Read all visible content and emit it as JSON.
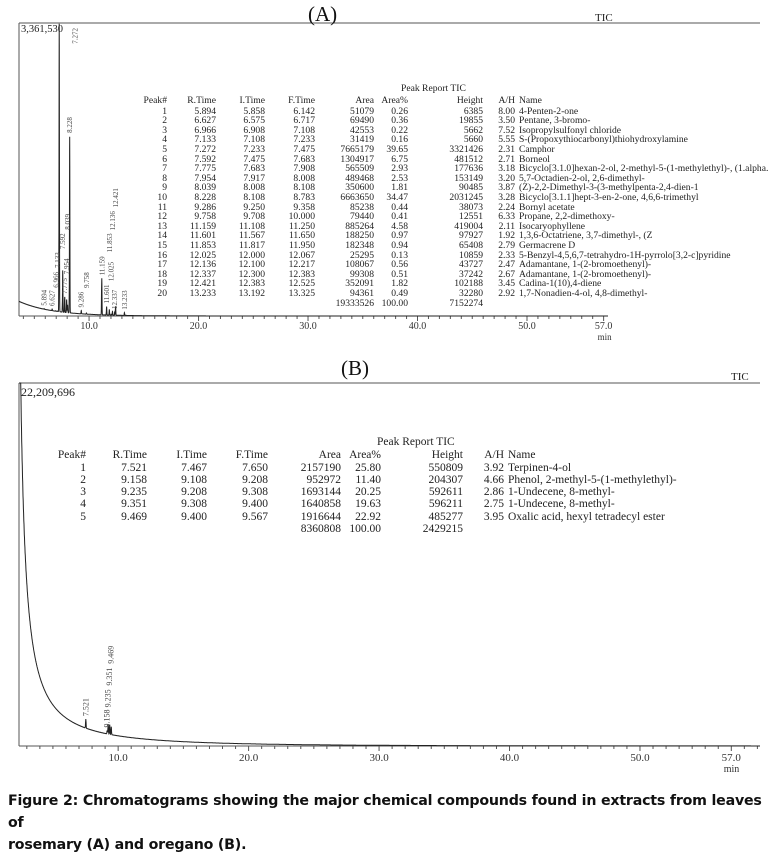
{
  "chart_data": [
    {
      "type": "line",
      "title": "(A)",
      "signal_label": "TIC",
      "y_max_label": "3,361,530",
      "y_max": 3361530,
      "xlim": [
        3.6,
        57.4
      ],
      "x_ticks": [
        "10.0",
        "20.0",
        "30.0",
        "40.0",
        "50.0",
        "57.0"
      ],
      "xlabel": "min",
      "grid": false,
      "line_color": "#222222",
      "table": {
        "title": "Peak Report TIC",
        "columns": [
          "Peak#",
          "R.Time",
          "I.Time",
          "F.Time",
          "Area",
          "Area%",
          "Height",
          "A/H",
          "Name"
        ],
        "rows": [
          [
            "1",
            "5.894",
            "5.858",
            "6.142",
            "51079",
            "0.26",
            "6385",
            "8.00",
            "4-Penten-2-one"
          ],
          [
            "2",
            "6.627",
            "6.575",
            "6.717",
            "69490",
            "0.36",
            "19855",
            "3.50",
            "Pentane, 3-bromo-"
          ],
          [
            "3",
            "6.966",
            "6.908",
            "7.108",
            "42553",
            "0.22",
            "5662",
            "7.52",
            "Isopropylsulfonyl chloride"
          ],
          [
            "4",
            "7.133",
            "7.108",
            "7.233",
            "31419",
            "0.16",
            "5660",
            "5.55",
            "S-(Propoxythiocarbonyl)thiohydroxylamine"
          ],
          [
            "5",
            "7.272",
            "7.233",
            "7.475",
            "7665179",
            "39.65",
            "3321426",
            "2.31",
            "Camphor"
          ],
          [
            "6",
            "7.592",
            "7.475",
            "7.683",
            "1304917",
            "6.75",
            "481512",
            "2.71",
            "Borneol"
          ],
          [
            "7",
            "7.775",
            "7.683",
            "7.908",
            "565509",
            "2.93",
            "177636",
            "3.18",
            "Bicyclo[3.1.0]hexan-2-ol, 2-methyl-5-(1-methylethyl)-, (1.alpha.,2.beta.,"
          ],
          [
            "8",
            "7.954",
            "7.917",
            "8.008",
            "489468",
            "2.53",
            "153149",
            "3.20",
            "5,7-Octadien-2-ol, 2,6-dimethyl-"
          ],
          [
            "9",
            "8.039",
            "8.008",
            "8.108",
            "350600",
            "1.81",
            "90485",
            "3.87",
            "(Z)-2,2-Dimethyl-3-(3-methylpenta-2,4-dien-1"
          ],
          [
            "10",
            "8.228",
            "8.108",
            "8.783",
            "6663650",
            "34.47",
            "2031245",
            "3.28",
            "Bicyclo[3.1.1]hept-3-en-2-one, 4,6,6-trimethyl"
          ],
          [
            "11",
            "9.286",
            "9.250",
            "9.358",
            "85238",
            "0.44",
            "38073",
            "2.24",
            "Bornyl acetate"
          ],
          [
            "12",
            "9.758",
            "9.708",
            "10.000",
            "79440",
            "0.41",
            "12551",
            "6.33",
            "Propane, 2,2-dimethoxy-"
          ],
          [
            "13",
            "11.159",
            "11.108",
            "11.250",
            "885264",
            "4.58",
            "419004",
            "2.11",
            "Isocaryophyllene"
          ],
          [
            "14",
            "11.601",
            "11.567",
            "11.650",
            "188250",
            "0.97",
            "97927",
            "1.92",
            "1,3,6-Octatriene, 3,7-dimethyl-, (Z"
          ],
          [
            "15",
            "11.853",
            "11.817",
            "11.950",
            "182348",
            "0.94",
            "65408",
            "2.79",
            "Germacrene D"
          ],
          [
            "16",
            "12.025",
            "12.000",
            "12.067",
            "25295",
            "0.13",
            "10859",
            "2.33",
            "5-Benzyl-4,5,6,7-tetrahydro-1H-pyrrolo[3,2-c]pyridine"
          ],
          [
            "17",
            "12.136",
            "12.100",
            "12.217",
            "108067",
            "0.56",
            "43727",
            "2.47",
            "Adamantane, 1-(2-bromoethenyl)-"
          ],
          [
            "18",
            "12.337",
            "12.300",
            "12.383",
            "99308",
            "0.51",
            "37242",
            "2.67",
            "Adamantane, 1-(2-bromoethenyl)-"
          ],
          [
            "19",
            "12.421",
            "12.383",
            "12.525",
            "352091",
            "1.82",
            "102188",
            "3.45",
            "Cadina-1(10),4-diene"
          ],
          [
            "20",
            "13.233",
            "13.192",
            "13.325",
            "94361",
            "0.49",
            "32280",
            "2.92",
            "1,7-Nonadien-4-ol, 4,8-dimethyl-"
          ]
        ],
        "totals": {
          "area": "19333526",
          "area_pct": "100.00",
          "height": "7152274"
        }
      }
    },
    {
      "type": "line",
      "title": "(B)",
      "signal_label": "TIC",
      "y_max_label": "22,209,696",
      "y_max": 22209696,
      "xlim": [
        2.4,
        59.2
      ],
      "x_ticks": [
        "10.0",
        "20.0",
        "30.0",
        "40.0",
        "50.0",
        "57.0"
      ],
      "xlabel": "min",
      "grid": false,
      "line_color": "#222222",
      "table": {
        "title": "Peak Report TIC",
        "columns": [
          "Peak#",
          "R.Time",
          "I.Time",
          "F.Time",
          "Area",
          "Area%",
          "Height",
          "A/H",
          "Name"
        ],
        "rows": [
          [
            "1",
            "7.521",
            "7.467",
            "7.650",
            "2157190",
            "25.80",
            "550809",
            "3.92",
            "Terpinen-4-ol"
          ],
          [
            "2",
            "9.158",
            "9.108",
            "9.208",
            "952972",
            "11.40",
            "204307",
            "4.66",
            "Phenol, 2-methyl-5-(1-methylethyl)-"
          ],
          [
            "3",
            "9.235",
            "9.208",
            "9.308",
            "1693144",
            "20.25",
            "592611",
            "2.86",
            "1-Undecene, 8-methyl-"
          ],
          [
            "4",
            "9.351",
            "9.308",
            "9.400",
            "1640858",
            "19.63",
            "596211",
            "2.75",
            "1-Undecene, 8-methyl-"
          ],
          [
            "5",
            "9.469",
            "9.400",
            "9.567",
            "1916644",
            "22.92",
            "485277",
            "3.95",
            "Oxalic acid, hexyl tetradecyl ester"
          ]
        ],
        "totals": {
          "area": "8360808",
          "area_pct": "100.00",
          "height": "2429215"
        }
      }
    }
  ],
  "caption": {
    "line1": "Figure 2: Chromatograms showing the major chemical compounds found in extracts from leaves of",
    "line2": "rosemary (A) and oregano (B)."
  }
}
